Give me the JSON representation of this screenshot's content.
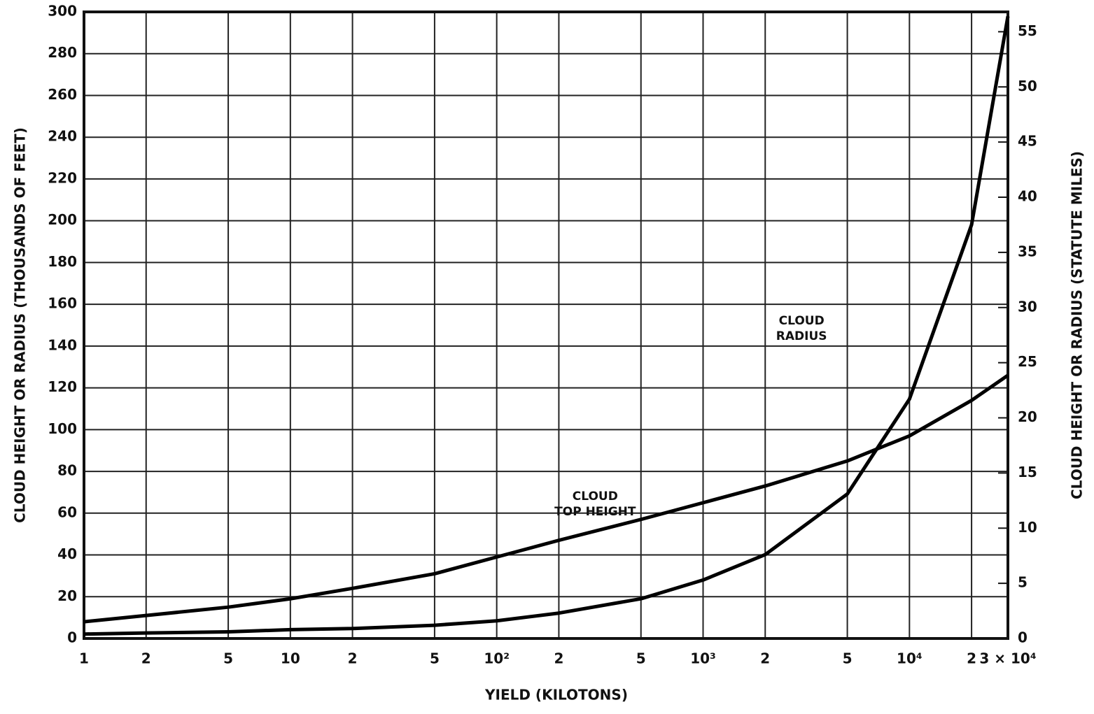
{
  "chart_data": {
    "type": "line",
    "xlabel": "YIELD (KILOTONS)",
    "ylabel": "CLOUD HEIGHT OR RADIUS (THOUSANDS OF FEET)",
    "y2label": "CLOUD HEIGHT OR RADIUS (STATUTE MILES)",
    "xscale": "log",
    "xlim": [
      1,
      30000
    ],
    "xticks": [
      1,
      {
        "value": 2,
        "label": "2"
      },
      {
        "value": 5,
        "label": "5"
      },
      10,
      {
        "value": 20,
        "label": "2"
      },
      {
        "value": 50,
        "label": "5"
      },
      {
        "value": 100,
        "label": "10²"
      },
      {
        "value": 200,
        "label": "2"
      },
      {
        "value": 500,
        "label": "5"
      },
      {
        "value": 1000,
        "label": "10³"
      },
      {
        "value": 2000,
        "label": "2"
      },
      {
        "value": 5000,
        "label": "5"
      },
      {
        "value": 10000,
        "label": "10⁴"
      },
      {
        "value": 20000,
        "label": "2"
      },
      {
        "value": 30000,
        "label": "3 × 10⁴"
      }
    ],
    "ylim": [
      0,
      300
    ],
    "yticks": [
      0,
      20,
      40,
      60,
      80,
      100,
      120,
      140,
      160,
      180,
      200,
      220,
      240,
      260,
      280,
      300
    ],
    "y2lim": [
      0,
      56.8
    ],
    "y2ticks": [
      0,
      5,
      10,
      15,
      20,
      25,
      30,
      35,
      40,
      45,
      50,
      55
    ],
    "grid": true,
    "x": [
      1,
      2,
      5,
      10,
      20,
      50,
      100,
      200,
      500,
      1000,
      2000,
      5000,
      10000,
      20000,
      30000
    ],
    "series": [
      {
        "color": "#000000",
        "axis": "y",
        "values": [
          8,
          11,
          15,
          19,
          24,
          31,
          39,
          47,
          57,
          65,
          73,
          85,
          97,
          114,
          126
        ]
      },
      {
        "color": "#000000",
        "axis": "y2",
        "values": [
          0.4,
          0.5,
          0.6,
          0.8,
          0.9,
          1.2,
          1.6,
          2.3,
          3.6,
          5.3,
          7.6,
          13.1,
          21.7,
          37.5,
          56.4
        ]
      }
    ],
    "annotations": [
      {
        "lines": [
          "CLOUD",
          "RADIUS"
        ],
        "x": 3000,
        "y": 152
      },
      {
        "lines": [
          "CLOUD",
          "TOP HEIGHT"
        ],
        "x": 300,
        "y": 68
      }
    ]
  }
}
